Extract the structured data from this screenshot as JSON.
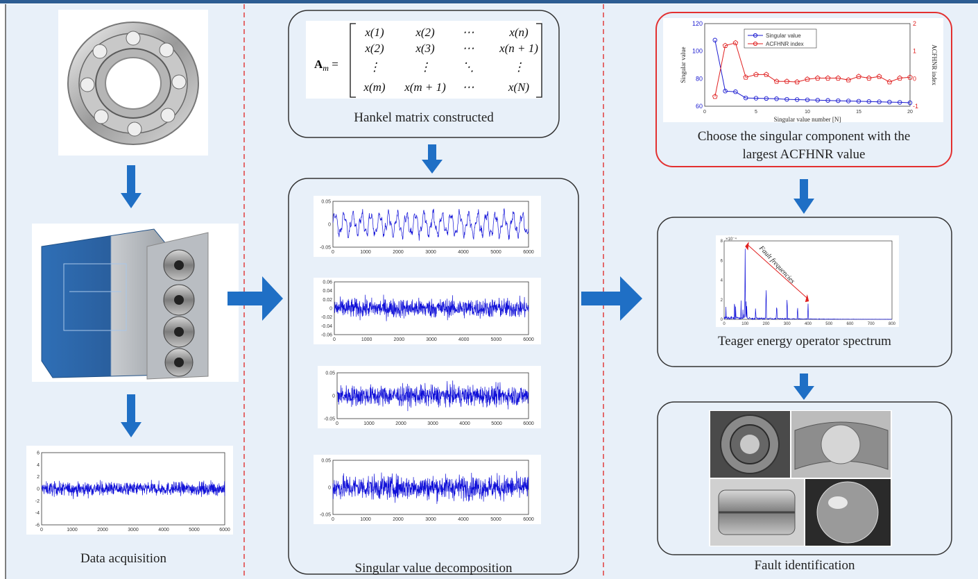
{
  "columns": {
    "col1": {
      "label": "Data acquisition"
    },
    "col2": {
      "hankel_label": "Hankel matrix constructed",
      "svd_label": "Singular value decomposition",
      "matrix": {
        "lhs_bold": "A",
        "lhs_sub": "m",
        "equals": "=",
        "rows": [
          [
            "x(1)",
            "x(2)",
            "⋯",
            "x(n)"
          ],
          [
            "x(2)",
            "x(3)",
            "⋯",
            "x(n + 1)"
          ],
          [
            "⋮",
            "⋮",
            "⋱",
            "⋮"
          ],
          [
            "x(m)",
            "x(m + 1)",
            "⋯",
            "x(N)"
          ]
        ]
      }
    },
    "col3": {
      "choose_label_line1": "Choose the singular component with the",
      "choose_label_line2": "largest ACFHNR value",
      "teo_label": "Teager energy operator spectrum",
      "fault_label": "Fault identification"
    }
  },
  "colors": {
    "arrow": "#1f6fc5",
    "panel_bg": "#e8f0f9",
    "divider": "#e03c3c",
    "signal": "#1010d8",
    "highlight_border": "#e33030",
    "acfhnr": "#e02020"
  },
  "chart_data": [
    {
      "id": "raw-signal",
      "type": "line",
      "xlim": [
        0,
        6000
      ],
      "ylim": [
        -6,
        6
      ],
      "xticks": [
        "0",
        "1000",
        "2000",
        "3000",
        "4000",
        "5000",
        "6000"
      ],
      "yticks": [
        "6",
        "4",
        "2",
        "0",
        "-2",
        "-4",
        "-6"
      ],
      "amplitude": 1.5
    },
    {
      "id": "svd-component-1",
      "type": "line",
      "xlim": [
        0,
        6000
      ],
      "ylim": [
        -0.05,
        0.05
      ],
      "xticks": [
        "0",
        "1000",
        "2000",
        "3000",
        "4000",
        "5000",
        "6000"
      ],
      "yticks": [
        "0.05",
        "0",
        "-0.05"
      ]
    },
    {
      "id": "svd-component-2",
      "type": "line",
      "xlim": [
        0,
        6000
      ],
      "ylim": [
        -0.06,
        0.06
      ],
      "xticks": [
        "0",
        "1000",
        "2000",
        "3000",
        "4000",
        "5000",
        "6000"
      ],
      "yticks": [
        "0.06",
        "0.04",
        "0.02",
        "0",
        "-0.02",
        "-0.04",
        "-0.06"
      ]
    },
    {
      "id": "svd-component-3",
      "type": "line",
      "xlim": [
        0,
        6000
      ],
      "ylim": [
        -0.05,
        0.05
      ],
      "xticks": [
        "0",
        "1000",
        "2000",
        "3000",
        "4000",
        "5000",
        "6000"
      ],
      "yticks": [
        "0.05",
        "0",
        "-0.05"
      ]
    },
    {
      "id": "svd-component-4",
      "type": "line",
      "xlim": [
        0,
        6000
      ],
      "ylim": [
        -0.05,
        0.05
      ],
      "xticks": [
        "0",
        "1000",
        "2000",
        "3000",
        "4000",
        "5000",
        "6000"
      ],
      "yticks": [
        "0.05",
        "0",
        "-0.05"
      ]
    },
    {
      "id": "singular-value-acfhnr",
      "type": "line",
      "xlabel": "Singular value number [N]",
      "ylabel": "Singular value",
      "y2label": "ACFHNR index",
      "xlim": [
        0,
        20
      ],
      "ylim": [
        60,
        120
      ],
      "y2lim": [
        -1,
        2
      ],
      "xticks": [
        "0",
        "5",
        "10",
        "15",
        "20"
      ],
      "yticks": [
        "120",
        "100",
        "80",
        "60"
      ],
      "y2ticks": [
        "2",
        "1",
        "0",
        "-1"
      ],
      "legend": "top-center",
      "x": [
        1,
        2,
        3,
        4,
        5,
        6,
        7,
        8,
        9,
        10,
        11,
        12,
        13,
        14,
        15,
        16,
        17,
        18,
        19,
        20
      ],
      "series": [
        {
          "name": "Singular value",
          "axis": "left",
          "values": [
            108,
            71,
            70.5,
            66,
            65.8,
            65.6,
            65.4,
            65,
            64.8,
            64.6,
            64.4,
            64.2,
            64,
            63.8,
            63.6,
            63.4,
            63.2,
            63,
            62.8,
            62.5
          ]
        },
        {
          "name": "ACFHNR index",
          "axis": "right",
          "values": [
            -0.65,
            1.2,
            1.3,
            0.05,
            0.15,
            0.15,
            -0.1,
            -0.1,
            -0.12,
            -0.02,
            0.02,
            0.02,
            0.02,
            -0.05,
            0.08,
            0.02,
            0.08,
            -0.12,
            0.02,
            0.05
          ]
        }
      ]
    },
    {
      "id": "teo-spectrum",
      "type": "line",
      "xlim": [
        0,
        800
      ],
      "ylim": [
        0,
        1
      ],
      "xticks": [
        "0",
        "100",
        "200",
        "300",
        "400",
        "500",
        "600",
        "700",
        "800"
      ],
      "yticks": [
        "8",
        "6",
        "4",
        "2",
        "0"
      ],
      "yexp": "×10⁻⁴",
      "annotation": "Fault frequencies",
      "peaks": [
        {
          "x": 100,
          "y": 0.9
        },
        {
          "x": 200,
          "y": 0.48
        },
        {
          "x": 300,
          "y": 0.32
        },
        {
          "x": 400,
          "y": 0.2
        }
      ]
    }
  ]
}
